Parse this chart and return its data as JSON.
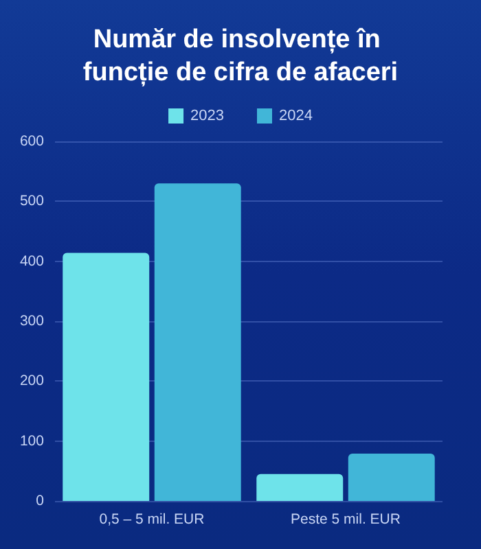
{
  "chart_data": {
    "type": "bar",
    "title": "Număr de insolvențe în funcție de cifra de afaceri",
    "categories": [
      "0,5 – 5 mil. EUR",
      "Peste 5 mil. EUR"
    ],
    "series": [
      {
        "name": "2023",
        "color": "#6ee3ea",
        "values": [
          414,
          45
        ]
      },
      {
        "name": "2024",
        "color": "#41b6d8",
        "values": [
          530,
          79
        ]
      }
    ],
    "ylim": [
      0,
      600
    ],
    "yticks": [
      0,
      100,
      200,
      300,
      400,
      500,
      600
    ],
    "grid": "y",
    "legend": "top"
  }
}
